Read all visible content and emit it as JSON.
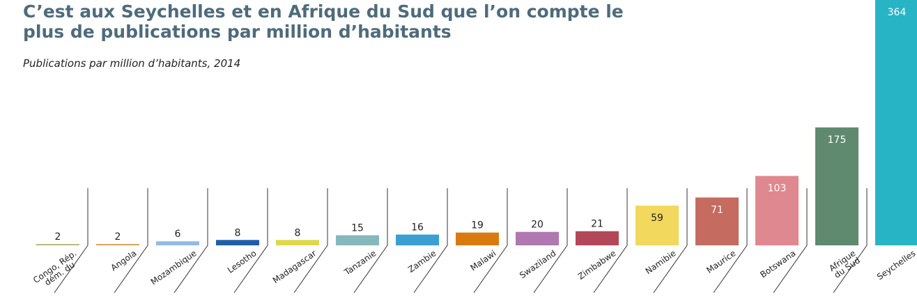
{
  "chart_data": {
    "type": "bar",
    "title": "C’est aux Seychelles et en Afrique du Sud que l’on compte le plus de publications par million d’habitants",
    "subtitle": "Publications par million d’habitants, 2014",
    "categories": [
      "Congo, Rép.\ndém. du",
      "Angola",
      "Mozambique",
      "Lesotho",
      "Madagascar",
      "Tanzanie",
      "Zambie",
      "Malawi",
      "Swaziland",
      "Zimbabwe",
      "Namibie",
      "Maurice",
      "Botswana",
      "Afrique\ndu Sud",
      "Seychelles"
    ],
    "values": [
      2,
      2,
      6,
      8,
      8,
      15,
      16,
      19,
      20,
      21,
      59,
      71,
      103,
      175,
      364
    ],
    "colors": [
      "#b8b97e",
      "#d6a45f",
      "#93bbe2",
      "#1f5ea8",
      "#ddd94b",
      "#88b6bd",
      "#3aa0d2",
      "#d97a10",
      "#b078b0",
      "#b3475a",
      "#f2d85c",
      "#c56b5f",
      "#e0888f",
      "#5f8a6f",
      "#27b5c6"
    ],
    "ylim": [
      0,
      364
    ]
  }
}
